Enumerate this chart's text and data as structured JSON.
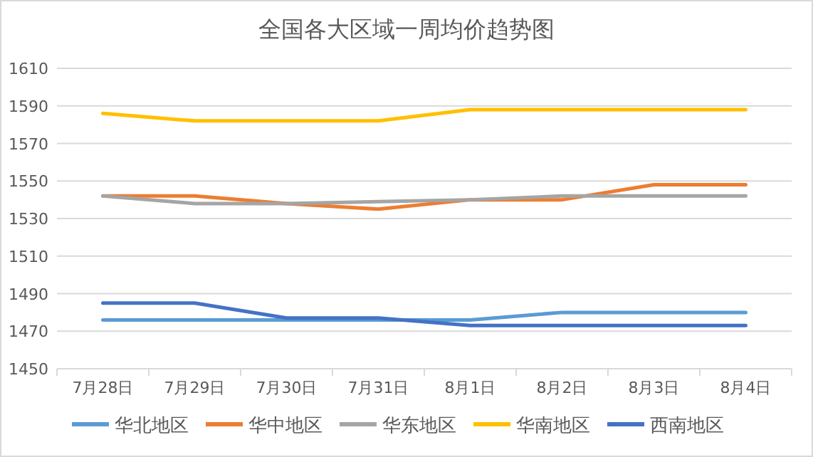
{
  "chart_data": {
    "type": "line",
    "title": "全国各大区域一周均价趋势图",
    "categories": [
      "7月28日",
      "7月29日",
      "7月30日",
      "7月31日",
      "8月1日",
      "8月2日",
      "8月3日",
      "8月4日"
    ],
    "series": [
      {
        "name": "华北地区",
        "color": "#5b9bd5",
        "values": [
          1476,
          1476,
          1476,
          1476,
          1476,
          1480,
          1480,
          1480
        ]
      },
      {
        "name": "华中地区",
        "color": "#ed7d31",
        "values": [
          1542,
          1542,
          1538,
          1535,
          1540,
          1540,
          1548,
          1548
        ]
      },
      {
        "name": "华东地区",
        "color": "#a5a5a5",
        "values": [
          1542,
          1538,
          1538,
          1539,
          1540,
          1542,
          1542,
          1542
        ]
      },
      {
        "name": "华南地区",
        "color": "#ffc000",
        "values": [
          1586,
          1582,
          1582,
          1582,
          1588,
          1588,
          1588,
          1588
        ]
      },
      {
        "name": "西南地区",
        "color": "#4472c4",
        "values": [
          1485,
          1485,
          1477,
          1477,
          1473,
          1473,
          1473,
          1473
        ]
      }
    ],
    "ylim": [
      1450,
      1610
    ],
    "yticks": [
      1450,
      1470,
      1490,
      1510,
      1530,
      1550,
      1570,
      1590,
      1610
    ],
    "grid": "y",
    "legend": "bottom",
    "marker": "none",
    "line_style": "solid"
  }
}
